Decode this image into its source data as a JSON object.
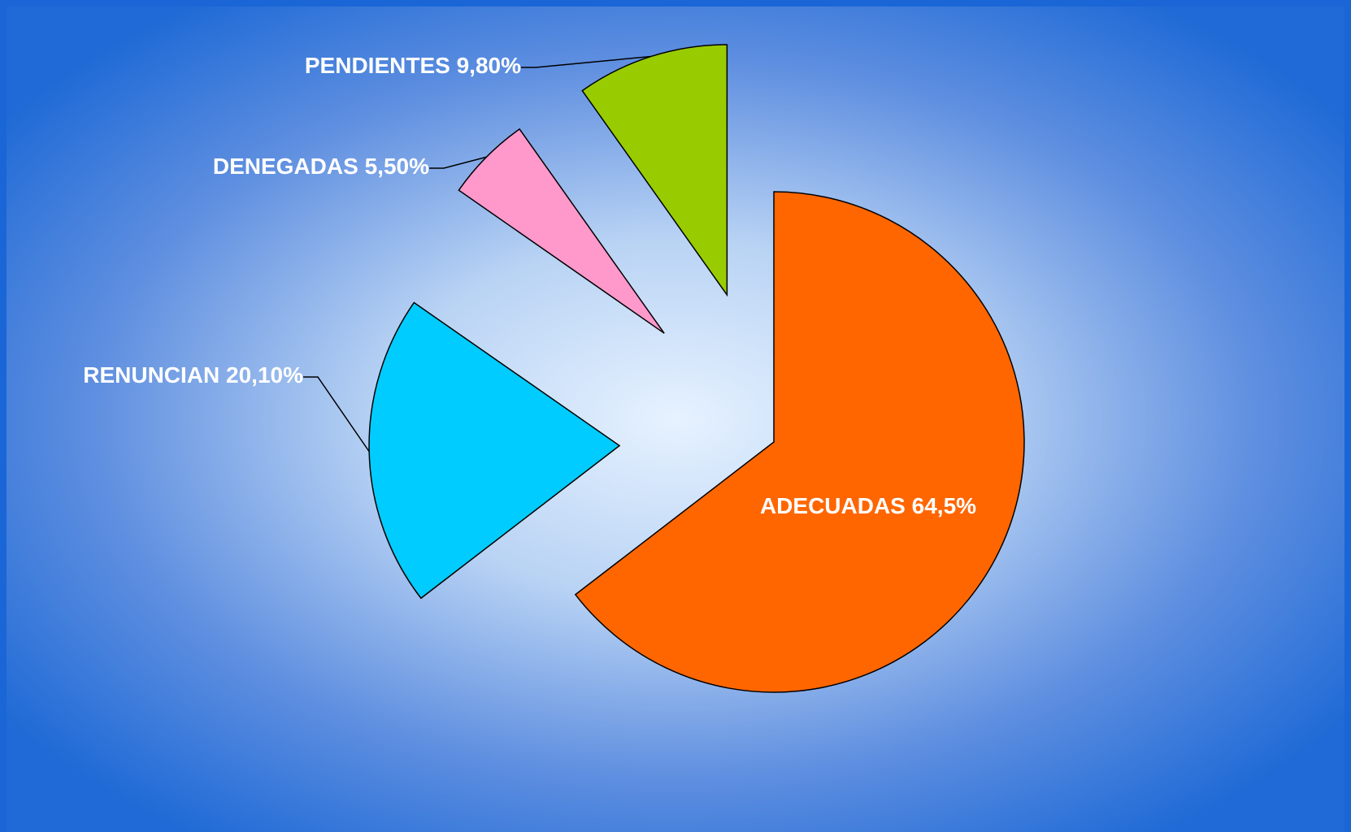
{
  "chart_data": {
    "type": "pie",
    "categories": [
      "ADECUADAS",
      "RENUNCIAN",
      "DENEGADAS",
      "PENDIENTES"
    ],
    "values": [
      64.5,
      20.1,
      5.5,
      9.8
    ],
    "value_labels": [
      "64,5%",
      "20,10%",
      "5,50%",
      "9,80%"
    ],
    "colors": [
      "#ff6600",
      "#00ccff",
      "#ff99cc",
      "#99cc00"
    ]
  }
}
